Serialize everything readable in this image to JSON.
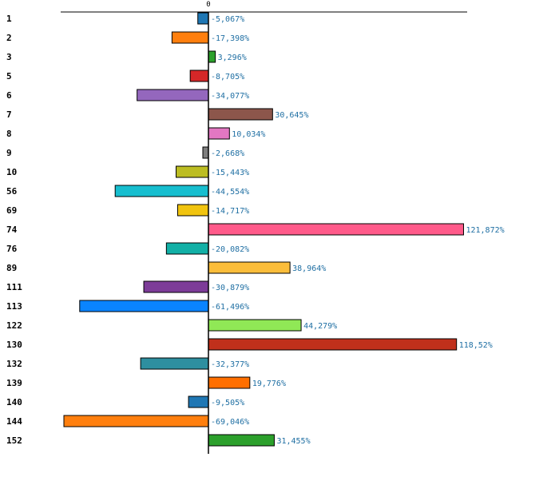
{
  "chart_data": {
    "type": "bar",
    "orientation": "horizontal",
    "title": "",
    "xlabel": "",
    "ylabel": "",
    "xlim": [
      -69.046,
      121.872
    ],
    "zero_tick_label": "0",
    "grid": false,
    "value_suffix": "%",
    "categories": [
      "1",
      "2",
      "3",
      "5",
      "6",
      "7",
      "8",
      "9",
      "10",
      "56",
      "69",
      "74",
      "76",
      "89",
      "111",
      "113",
      "122",
      "130",
      "132",
      "139",
      "140",
      "144",
      "152"
    ],
    "values": [
      -5.067,
      -17.398,
      3.296,
      -8.705,
      -34.077,
      30.645,
      10.034,
      -2.668,
      -15.443,
      -44.554,
      -14.717,
      121.872,
      -20.082,
      38.964,
      -30.879,
      -61.496,
      44.279,
      118.52,
      -32.377,
      19.776,
      -9.505,
      -69.046,
      31.455
    ],
    "value_labels": [
      "-5,067%",
      "-17,398%",
      "3,296%",
      "-8,705%",
      "-34,077%",
      "30,645%",
      "10,034%",
      "-2,668%",
      "-15,443%",
      "-44,554%",
      "-14,717%",
      "121,872%",
      "-20,082%",
      "38,964%",
      "-30,879%",
      "-61,496%",
      "44,279%",
      "118,52%",
      "-32,377%",
      "19,776%",
      "-9,505%",
      "-69,046%",
      "31,455%"
    ],
    "colors": [
      "#1f77b4",
      "#ff7f0e",
      "#2ca02c",
      "#d62728",
      "#9467bd",
      "#8c564b",
      "#e377c2",
      "#7f7f7f",
      "#bcbd22",
      "#17becf",
      "#f1c40f",
      "#ff5a8a",
      "#12b0a6",
      "#fbbd3a",
      "#7d3c98",
      "#0a84ff",
      "#90e856",
      "#c0301b",
      "#2e8fa0",
      "#ff6f00",
      "#1f77b4",
      "#ff7f0e",
      "#2ca02c"
    ]
  }
}
